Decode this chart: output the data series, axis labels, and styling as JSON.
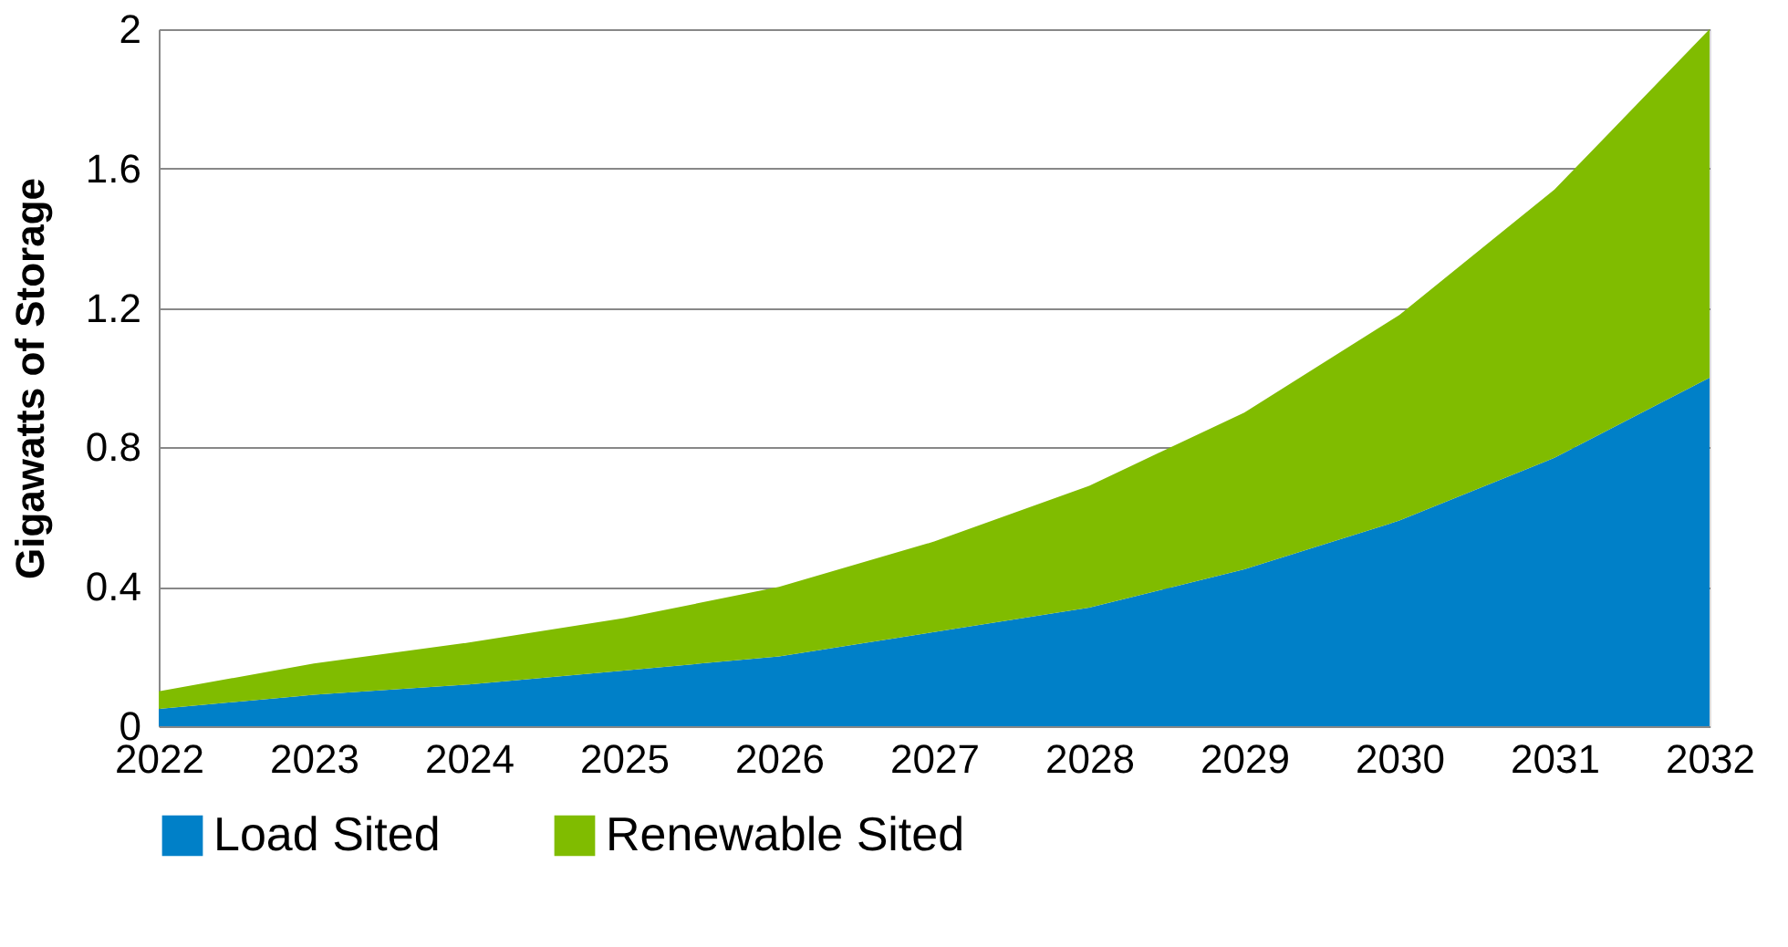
{
  "chart_data": {
    "type": "area",
    "stacked": true,
    "ylabel": "Gigawatts of Storage",
    "categories": [
      "2022",
      "2023",
      "2024",
      "2025",
      "2026",
      "2027",
      "2028",
      "2029",
      "2030",
      "2031",
      "2032"
    ],
    "series": [
      {
        "name": "Load Sited",
        "color": "#0080c8",
        "values": [
          0.05,
          0.09,
          0.12,
          0.16,
          0.2,
          0.27,
          0.34,
          0.45,
          0.59,
          0.77,
          1.0
        ]
      },
      {
        "name": "Renewable Sited",
        "color": "#80bc00",
        "values": [
          0.05,
          0.09,
          0.12,
          0.15,
          0.2,
          0.26,
          0.35,
          0.45,
          0.59,
          0.77,
          1.0
        ]
      }
    ],
    "ylim": [
      0,
      2
    ],
    "yticks": [
      0,
      0.4,
      0.8,
      1.2,
      1.6,
      2
    ],
    "grid": "y",
    "legend": "bottom"
  }
}
